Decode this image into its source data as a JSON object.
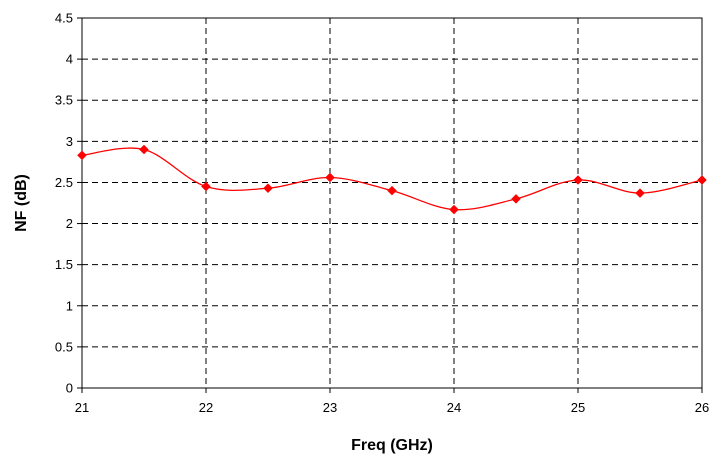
{
  "chart_data": {
    "type": "line",
    "title": "",
    "xlabel": "Freq (GHz)",
    "ylabel": "NF (dB)",
    "xlim": [
      21,
      26
    ],
    "ylim": [
      0,
      4.5
    ],
    "x_ticks": [
      21,
      22,
      23,
      24,
      25,
      26
    ],
    "y_ticks": [
      0,
      0.5,
      1,
      1.5,
      2,
      2.5,
      3,
      3.5,
      4,
      4.5
    ],
    "grid": true,
    "legend": "none",
    "smooth": true,
    "series": [
      {
        "color": "#ff0000",
        "marker": "diamond",
        "x": [
          21,
          21.5,
          22,
          22.5,
          23,
          23.5,
          24,
          24.5,
          25,
          25.5,
          26
        ],
        "y": [
          2.83,
          2.9,
          2.45,
          2.43,
          2.56,
          2.4,
          2.17,
          2.3,
          2.53,
          2.37,
          2.53
        ]
      }
    ]
  }
}
